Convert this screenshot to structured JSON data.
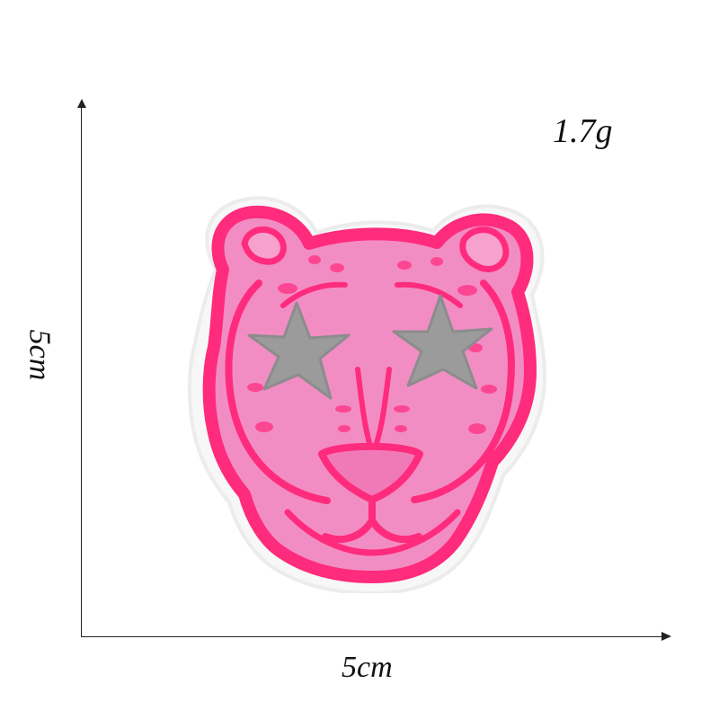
{
  "measurements": {
    "width_label": "5cm",
    "height_label": "5cm",
    "weight_label": "1.7g"
  },
  "patch": {
    "subject": "leopard-head-embroidered-patch",
    "colors": {
      "outline": "#ff2f7f",
      "fill": "#f08fc5",
      "stars": "#9b9b9b",
      "backing": "#f7f7f7"
    }
  }
}
